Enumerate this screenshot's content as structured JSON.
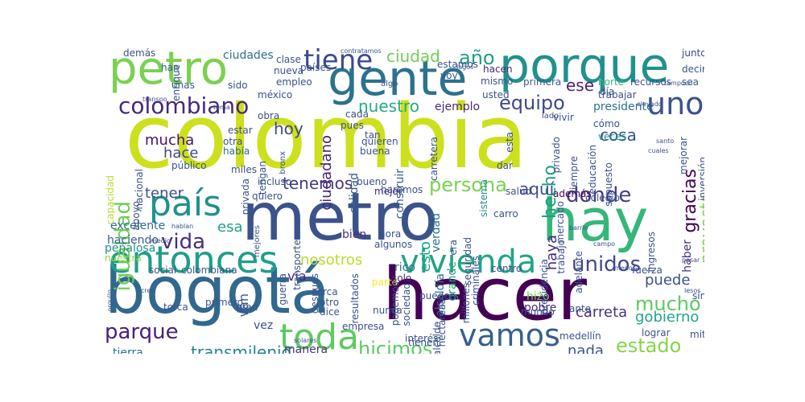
{
  "wordcloud": {
    "words": [
      {
        "text": "colombia",
        "color": "#cde01d"
      },
      {
        "text": "metro",
        "color": "#3b528b"
      },
      {
        "text": "hacer",
        "color": "#440154"
      },
      {
        "text": "bogotá",
        "color": "#31688e"
      },
      {
        "text": "hay",
        "color": "#35b779"
      },
      {
        "text": "porque",
        "color": "#21918c"
      },
      {
        "text": "gente",
        "color": "#2c728e"
      },
      {
        "text": "petro",
        "color": "#7ad151"
      },
      {
        "text": "entonces",
        "color": "#1f9e89"
      },
      {
        "text": "vivienda",
        "color": "#20a486"
      },
      {
        "text": "toda",
        "color": "#5ec962"
      },
      {
        "text": "vamos",
        "color": "#355f8d"
      },
      {
        "text": "país",
        "color": "#21918c"
      },
      {
        "text": "uno",
        "color": "#3b528b"
      },
      {
        "text": "tiene",
        "color": "#3e4989"
      },
      {
        "text": "colombiano",
        "color": "#482878"
      },
      {
        "text": "donde",
        "color": "#433e85"
      },
      {
        "text": "unidos",
        "color": "#3e4989"
      },
      {
        "text": "parque",
        "color": "#482173"
      },
      {
        "text": "vida",
        "color": "#472d7b"
      },
      {
        "text": "igualdad",
        "color": "#6ece58"
      },
      {
        "text": "mucho",
        "color": "#5ec962"
      },
      {
        "text": "estado",
        "color": "#86d549"
      },
      {
        "text": "hicimos",
        "color": "#5ec962"
      },
      {
        "text": "equipo",
        "color": "#3e4989"
      },
      {
        "text": "año",
        "color": "#1f9e89"
      },
      {
        "text": "persona",
        "color": "#7ad151"
      },
      {
        "text": "transmilenio",
        "color": "#25858e"
      },
      {
        "text": "ciudad",
        "color": "#6ece58"
      },
      {
        "text": "nuestro",
        "color": "#25ab82"
      },
      {
        "text": "hoy",
        "color": "#3e4989"
      },
      {
        "text": "cosa",
        "color": "#3b528b"
      },
      {
        "text": "hecho",
        "color": "#1fa187"
      },
      {
        "text": "gracias",
        "color": "#440154"
      },
      {
        "text": "proyecto",
        "color": "#7ad151"
      },
      {
        "text": "tenemos",
        "color": "#443983"
      },
      {
        "text": "nosotros",
        "color": "#b5de2b"
      },
      {
        "text": "aquí",
        "color": "#3e4989"
      },
      {
        "text": "haya",
        "color": "#472d7b"
      },
      {
        "text": "esto",
        "color": "#20a486"
      },
      {
        "text": "gobierno",
        "color": "#20a486"
      },
      {
        "text": "ciudadano",
        "color": "#482475"
      },
      {
        "text": "mucha",
        "color": "#471365"
      },
      {
        "text": "hace",
        "color": "#3e4989"
      },
      {
        "text": "tener",
        "color": "#3b528b"
      },
      {
        "text": "esa",
        "color": "#1fa187"
      },
      {
        "text": "ese",
        "color": "#481f70"
      },
      {
        "text": "puede",
        "color": "#3b528b"
      },
      {
        "text": "carreta",
        "color": "#46327e"
      },
      {
        "text": "nada",
        "color": "#3b528b"
      },
      {
        "text": "ejemplo",
        "color": "#482878"
      },
      {
        "text": "presidente",
        "color": "#2c728e"
      },
      {
        "text": "ciudades",
        "color": "#2c728e"
      },
      {
        "text": "demás",
        "color": "#3b528b"
      },
      {
        "text": "han",
        "color": "#355f8d"
      },
      {
        "text": "tierra",
        "color": "#2c728e"
      },
      {
        "text": "vía",
        "color": "#482878"
      },
      {
        "text": "manera",
        "color": "#46327e"
      },
      {
        "text": "van",
        "color": "#3b528b"
      },
      {
        "text": "vez",
        "color": "#3b528b"
      },
      {
        "text": "bien",
        "color": "#472d7b"
      },
      {
        "text": "hizo",
        "color": "#7ad151"
      },
      {
        "text": "pobre",
        "color": "#482878"
      },
      {
        "text": "veces",
        "color": "#21918c"
      },
      {
        "text": "cómo",
        "color": "#3b528b"
      },
      {
        "text": "además",
        "color": "#440154"
      },
      {
        "text": "construir",
        "color": "#355f8d"
      },
      {
        "text": "calidad",
        "color": "#355f8d"
      },
      {
        "text": "mejor",
        "color": "#482878"
      },
      {
        "text": "sistema",
        "color": "#21918c"
      },
      {
        "text": "alcaldía",
        "color": "#2c728e"
      },
      {
        "text": "grande",
        "color": "#20a486"
      },
      {
        "text": "verdad",
        "color": "#2c728e"
      },
      {
        "text": "peñalosa",
        "color": "#21918c"
      },
      {
        "text": "haciendo",
        "color": "#355f8d"
      },
      {
        "text": "excelente",
        "color": "#31688e"
      },
      {
        "text": "nuestra",
        "color": "#8fd744"
      },
      {
        "text": "social",
        "color": "#3b528b"
      },
      {
        "text": "colombiana",
        "color": "#3b528b"
      },
      {
        "text": "después",
        "color": "#3b528b"
      },
      {
        "text": "parte",
        "color": "#fde725"
      },
      {
        "text": "rico",
        "color": "#2c728e"
      },
      {
        "text": "solo",
        "color": "#482878"
      },
      {
        "text": "mismo",
        "color": "#3b528b"
      },
      {
        "text": "hacen",
        "color": "#482878"
      },
      {
        "text": "primera",
        "color": "#355f8d"
      },
      {
        "text": "norte",
        "color": "#35b779"
      },
      {
        "text": "día",
        "color": "#3b528b"
      },
      {
        "text": "trabajar",
        "color": "#3b528b"
      },
      {
        "text": "recursos",
        "color": "#3b528b"
      },
      {
        "text": "decir",
        "color": "#3b528b"
      },
      {
        "text": "junto",
        "color": "#3e4989"
      },
      {
        "text": "sea",
        "color": "#355f8d"
      },
      {
        "text": "estamos",
        "color": "#3b528b"
      },
      {
        "text": "países",
        "color": "#3b528b"
      },
      {
        "text": "empleo",
        "color": "#3b528b"
      },
      {
        "text": "méxico",
        "color": "#3b528b"
      },
      {
        "text": "obra",
        "color": "#3b528b"
      },
      {
        "text": "estar",
        "color": "#3b528b"
      },
      {
        "text": "otra",
        "color": "#3b528b"
      },
      {
        "text": "había",
        "color": "#31688e"
      },
      {
        "text": "público",
        "color": "#3b528b"
      },
      {
        "text": "nacional",
        "color": "#3b528b"
      },
      {
        "text": "capacidad",
        "color": "#b5de2b"
      },
      {
        "text": "apoyo",
        "color": "#3b528b"
      },
      {
        "text": "incluso",
        "color": "#3b528b"
      },
      {
        "text": "quiero",
        "color": "#3b528b"
      },
      {
        "text": "bueno",
        "color": "#3b528b"
      },
      {
        "text": "carretera",
        "color": "#3b528b"
      },
      {
        "text": "dar",
        "color": "#3b528b"
      },
      {
        "text": "privado",
        "color": "#3b528b"
      },
      {
        "text": "educación",
        "color": "#3b528b"
      },
      {
        "text": "supuesto",
        "color": "#3b528b"
      },
      {
        "text": "mejorar",
        "color": "#3b528b"
      },
      {
        "text": "inversión",
        "color": "#3b528b"
      },
      {
        "text": "ingresos",
        "color": "#3b528b"
      },
      {
        "text": "haber",
        "color": "#46327e"
      },
      {
        "text": "fuerza",
        "color": "#3b528b"
      },
      {
        "text": "sino",
        "color": "#3b528b"
      },
      {
        "text": "mitad",
        "color": "#3b528b"
      },
      {
        "text": "lograr",
        "color": "#3b528b"
      },
      {
        "text": "medellín",
        "color": "#3b528b"
      },
      {
        "text": "interés",
        "color": "#3b528b"
      },
      {
        "text": "tienen",
        "color": "#3b528b"
      },
      {
        "text": "mundo",
        "color": "#3b528b"
      },
      {
        "text": "podemos",
        "color": "#3b528b"
      },
      {
        "text": "sociedad",
        "color": "#3b528b"
      },
      {
        "text": "millones",
        "color": "#3b528b"
      },
      {
        "text": "pueden",
        "color": "#3b528b"
      },
      {
        "text": "resultados",
        "color": "#3b528b"
      },
      {
        "text": "alcalde",
        "color": "#3b528b"
      },
      {
        "text": "cerca",
        "color": "#3b528b"
      },
      {
        "text": "otro",
        "color": "#3b528b"
      },
      {
        "text": "dice",
        "color": "#3b528b"
      },
      {
        "text": "empresa",
        "color": "#3b528b"
      },
      {
        "text": "gran",
        "color": "#3b528b"
      },
      {
        "text": "primero",
        "color": "#3b528b"
      },
      {
        "text": "torca",
        "color": "#3b528b"
      },
      {
        "text": "transporte",
        "color": "#3b528b"
      },
      {
        "text": "seguridad",
        "color": "#3b528b"
      },
      {
        "text": "criminales",
        "color": "#3b528b"
      },
      {
        "text": "carro",
        "color": "#3b528b"
      },
      {
        "text": "trabajo",
        "color": "#3b528b"
      },
      {
        "text": "adelante",
        "color": "#3b528b"
      },
      {
        "text": "colegio",
        "color": "#3b528b"
      },
      {
        "text": "salud",
        "color": "#3b528b"
      },
      {
        "text": "centro",
        "color": "#3b528b"
      },
      {
        "text": "hora",
        "color": "#3b528b"
      },
      {
        "text": "algunos",
        "color": "#3b528b"
      },
      {
        "text": "presidencia",
        "color": "#3b528b"
      },
      {
        "text": "mercado",
        "color": "#3b528b"
      },
      {
        "text": "enrique",
        "color": "#3b528b"
      },
      {
        "text": "sido",
        "color": "#3b528b"
      },
      {
        "text": "clase",
        "color": "#3b528b"
      },
      {
        "text": "nueva",
        "color": "#3b528b"
      },
      {
        "text": "usted",
        "color": "#3b528b"
      },
      {
        "text": "siempre",
        "color": "#3b528b"
      },
      {
        "text": "vivir",
        "color": "#3b528b"
      },
      {
        "text": "cada",
        "color": "#3b528b"
      },
      {
        "text": "pues",
        "color": "#3b528b"
      },
      {
        "text": "tan",
        "color": "#3b528b"
      },
      {
        "text": "buena",
        "color": "#3b528b"
      },
      {
        "text": "esta",
        "color": "#3b528b"
      },
      {
        "text": "privada",
        "color": "#3b528b"
      },
      {
        "text": "tengan",
        "color": "#3b528b"
      },
      {
        "text": "miles",
        "color": "#3b528b"
      },
      {
        "text": "haremos",
        "color": "#3b528b"
      },
      {
        "text": "quieren",
        "color": "#3b528b"
      },
      {
        "text": "guerra",
        "color": "#3b528b"
      },
      {
        "text": "nunca",
        "color": "#3b528b"
      },
      {
        "text": "hectáreas",
        "color": "#3b528b"
      },
      {
        "text": "era",
        "color": "#3b528b"
      },
      {
        "text": "ante",
        "color": "#3b528b"
      },
      {
        "text": "lagos",
        "color": "#3b528b"
      },
      {
        "text": "contratamos",
        "color": "#3b528b"
      },
      {
        "text": "voy",
        "color": "#3b528b"
      },
      {
        "text": "bronx",
        "color": "#3b528b"
      },
      {
        "text": "elevado",
        "color": "#3b528b"
      },
      {
        "text": "tampoco",
        "color": "#3b528b"
      },
      {
        "text": "unas",
        "color": "#3b528b"
      },
      {
        "text": "algo",
        "color": "#3b528b"
      },
      {
        "text": "lado",
        "color": "#3b528b"
      },
      {
        "text": "barrio",
        "color": "#3b528b"
      },
      {
        "text": "campo",
        "color": "#3b528b"
      },
      {
        "text": "creo",
        "color": "#3b528b"
      },
      {
        "text": "menos",
        "color": "#3b528b"
      },
      {
        "text": "pasar",
        "color": "#3b528b"
      },
      {
        "text": "hablan",
        "color": "#3b528b"
      },
      {
        "text": "medio",
        "color": "#3b528b"
      },
      {
        "text": "tema",
        "color": "#3b528b"
      },
      {
        "text": "mejores",
        "color": "#3b528b"
      },
      {
        "text": "solares",
        "color": "#3b528b"
      },
      {
        "text": "transpo",
        "color": "#3b528b"
      },
      {
        "text": "santo",
        "color": "#3b528b"
      },
      {
        "text": "cuales",
        "color": "#3b528b"
      },
      {
        "text": "lesos",
        "color": "#3b528b"
      },
      {
        "text": "orgullo",
        "color": "#3b528b"
      }
    ]
  }
}
